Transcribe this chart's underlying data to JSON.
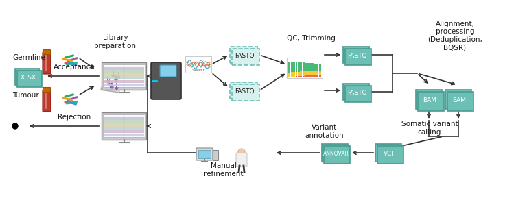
{
  "bg_color": "#ffffff",
  "teal": "#6BBFB5",
  "teal_ec": "#4A9A90",
  "dashed_bg": "#D8F0EE",
  "arrow_color": "#333333",
  "text_color": "#1a1a1a",
  "labels": {
    "germline": "Germline",
    "tumour": "Tumour",
    "lib_prep": "Library\npreparation",
    "qc_trimming": "QC, Trimming",
    "alignment": "Alignment,\nprocessing\n(Deduplication,\nBQSR)",
    "variant_annotation": "Variant\nannotation",
    "somatic_calling": "Somatic variant\ncalling",
    "manual_refinement": "Manual\nrefinement",
    "acceptance": "Acceptance",
    "rejection": "Rejection",
    "fastq": "FASTQ",
    "bam": "BAM",
    "vcf": "VCF",
    "annovar": "ANNOVAR",
    "xlsx": "XLSX"
  },
  "figsize": [
    7.68,
    3.24
  ],
  "dpi": 100
}
